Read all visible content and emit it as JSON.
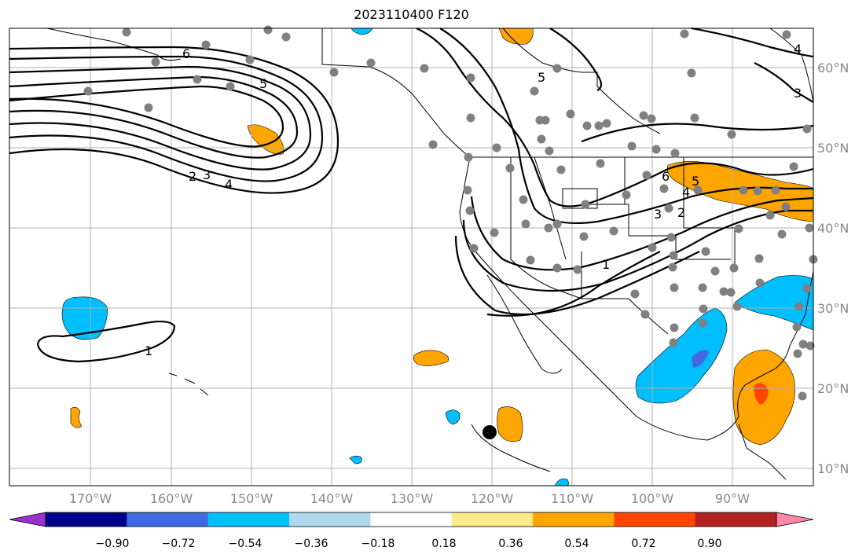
{
  "title": "2023110400 F120",
  "longitude_labels": [
    "170°W",
    "160°W",
    "150°W",
    "140°W",
    "130°W",
    "120°W",
    "110°W",
    "100°W",
    "90°W"
  ],
  "latitude_labels": [
    "60°N",
    "50°N",
    "40°N",
    "30°N",
    "20°N",
    "10°N"
  ],
  "colorbar": {
    "tick_labels": [
      "−0.90",
      "−0.72",
      "−0.54",
      "−0.36",
      "−0.18",
      "0.18",
      "0.36",
      "0.54",
      "0.72",
      "0.90"
    ],
    "colors": [
      "#9932cc",
      "#00008b",
      "#4169e1",
      "#00bfff",
      "#add8f0",
      "#ffffff",
      "#fce98a",
      "#ffa500",
      "#ff4500",
      "#b22222",
      "#ff88aa"
    ]
  },
  "contour_labels": [
    "6",
    "5",
    "4",
    "3",
    "2",
    "1",
    "5",
    "6",
    "5",
    "4",
    "3",
    "2",
    "1",
    "3",
    "4",
    "2",
    "3",
    "4",
    "1"
  ],
  "colors": {
    "positive_shade": "#ffa500",
    "negative_shade": "#00bfff",
    "grid": "#b0b0b0",
    "station": "#808080"
  }
}
